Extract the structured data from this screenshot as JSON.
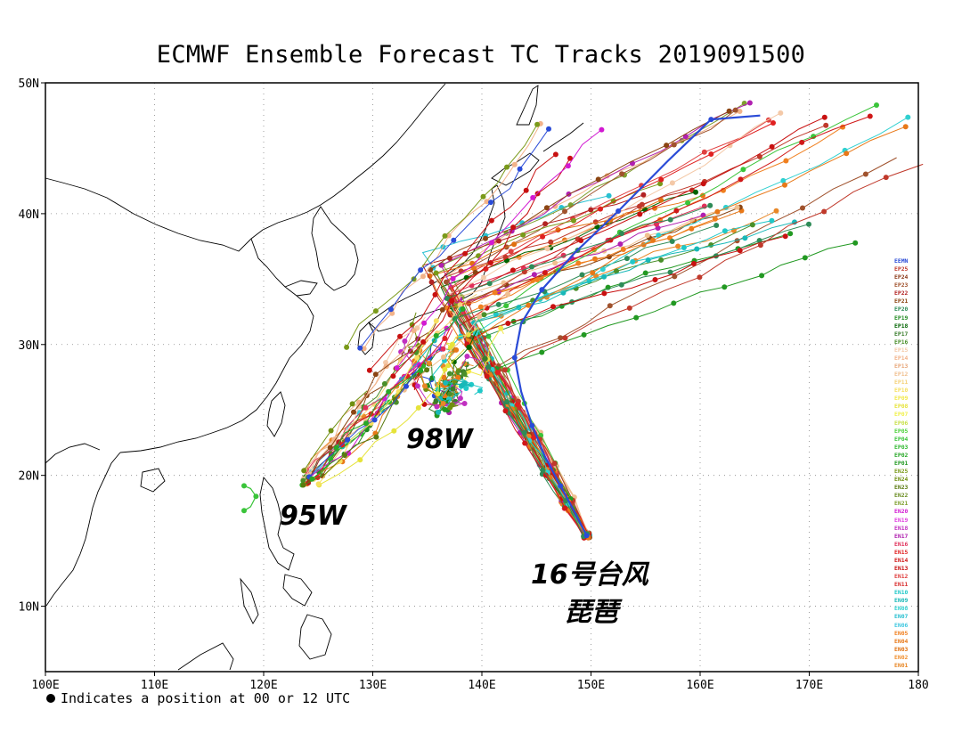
{
  "title": "ECMWF Ensemble Forecast TC Tracks 2019091500",
  "footnote": "Indicates a position at 00 or 12 UTC",
  "axes": {
    "lon_min": 100,
    "lon_max": 180,
    "lat_min": 5,
    "lat_max": 50,
    "lon_ticks": [
      100,
      110,
      120,
      130,
      140,
      150,
      160,
      170,
      180
    ],
    "lon_labels": [
      "100E",
      "110E",
      "120E",
      "130E",
      "140E",
      "150E",
      "160E",
      "170E",
      "180"
    ],
    "lat_ticks": [
      10,
      20,
      30,
      40,
      50
    ],
    "lat_labels": [
      "10N",
      "20N",
      "30N",
      "40N",
      "50N"
    ],
    "grid": "dotted"
  },
  "annotations": {
    "w95": "95W",
    "w98": "98W",
    "typhoon_line1": "16号台风",
    "typhoon_line2": "琵琶"
  },
  "legend": [
    {
      "name": "EEMN",
      "color": "#2a4bd7"
    },
    {
      "name": "EP25",
      "color": "#c0392b"
    },
    {
      "name": "EP24",
      "color": "#8b3a1a"
    },
    {
      "name": "EP23",
      "color": "#a0522d"
    },
    {
      "name": "EP22",
      "color": "#b22222"
    },
    {
      "name": "EP21",
      "color": "#8b4513"
    },
    {
      "name": "EP20",
      "color": "#2e8b57"
    },
    {
      "name": "EP19",
      "color": "#228b22"
    },
    {
      "name": "EP18",
      "color": "#006400"
    },
    {
      "name": "EP17",
      "color": "#3a7d2c"
    },
    {
      "name": "EP16",
      "color": "#4a8f2a"
    },
    {
      "name": "EP15",
      "color": "#f4c9a8"
    },
    {
      "name": "EP14",
      "color": "#f2b38a"
    },
    {
      "name": "EP13",
      "color": "#e8a87c"
    },
    {
      "name": "EP12",
      "color": "#f0c090"
    },
    {
      "name": "EP11",
      "color": "#f5d27a"
    },
    {
      "name": "EP10",
      "color": "#f7e060"
    },
    {
      "name": "EP09",
      "color": "#f2e94a"
    },
    {
      "name": "EP08",
      "color": "#e6e33a"
    },
    {
      "name": "EP07",
      "color": "#f0f04a"
    },
    {
      "name": "EP06",
      "color": "#c8e04a"
    },
    {
      "name": "EP05",
      "color": "#4cd13a"
    },
    {
      "name": "EP04",
      "color": "#3ac43a"
    },
    {
      "name": "EP03",
      "color": "#30b830"
    },
    {
      "name": "EP02",
      "color": "#28a828"
    },
    {
      "name": "EP01",
      "color": "#229922"
    },
    {
      "name": "EN25",
      "color": "#7a9a1a"
    },
    {
      "name": "EN24",
      "color": "#6f8f10"
    },
    {
      "name": "EN23",
      "color": "#5a7a10"
    },
    {
      "name": "EN22",
      "color": "#6b8e23"
    },
    {
      "name": "EN21",
      "color": "#7f9f2f"
    },
    {
      "name": "EN20",
      "color": "#d21ad2"
    },
    {
      "name": "EN19",
      "color": "#e040e0"
    },
    {
      "name": "EN18",
      "color": "#c030c0"
    },
    {
      "name": "EN17",
      "color": "#b020b0"
    },
    {
      "name": "EN16",
      "color": "#e0305a"
    },
    {
      "name": "EN15",
      "color": "#e02020"
    },
    {
      "name": "EN14",
      "color": "#d01818"
    },
    {
      "name": "EN13",
      "color": "#c81010"
    },
    {
      "name": "EN12",
      "color": "#e04040"
    },
    {
      "name": "EN11",
      "color": "#d83030"
    },
    {
      "name": "EN10",
      "color": "#20c8c8"
    },
    {
      "name": "EN09",
      "color": "#18b8b8"
    },
    {
      "name": "EN08",
      "color": "#30d0d0"
    },
    {
      "name": "EN07",
      "color": "#28c0d0"
    },
    {
      "name": "EN06",
      "color": "#40c8e0"
    },
    {
      "name": "EN05",
      "color": "#f08020"
    },
    {
      "name": "EN04",
      "color": "#e87818"
    },
    {
      "name": "EN03",
      "color": "#e07010"
    },
    {
      "name": "EN02",
      "color": "#f09030"
    },
    {
      "name": "EN01",
      "color": "#e88828"
    }
  ]
}
